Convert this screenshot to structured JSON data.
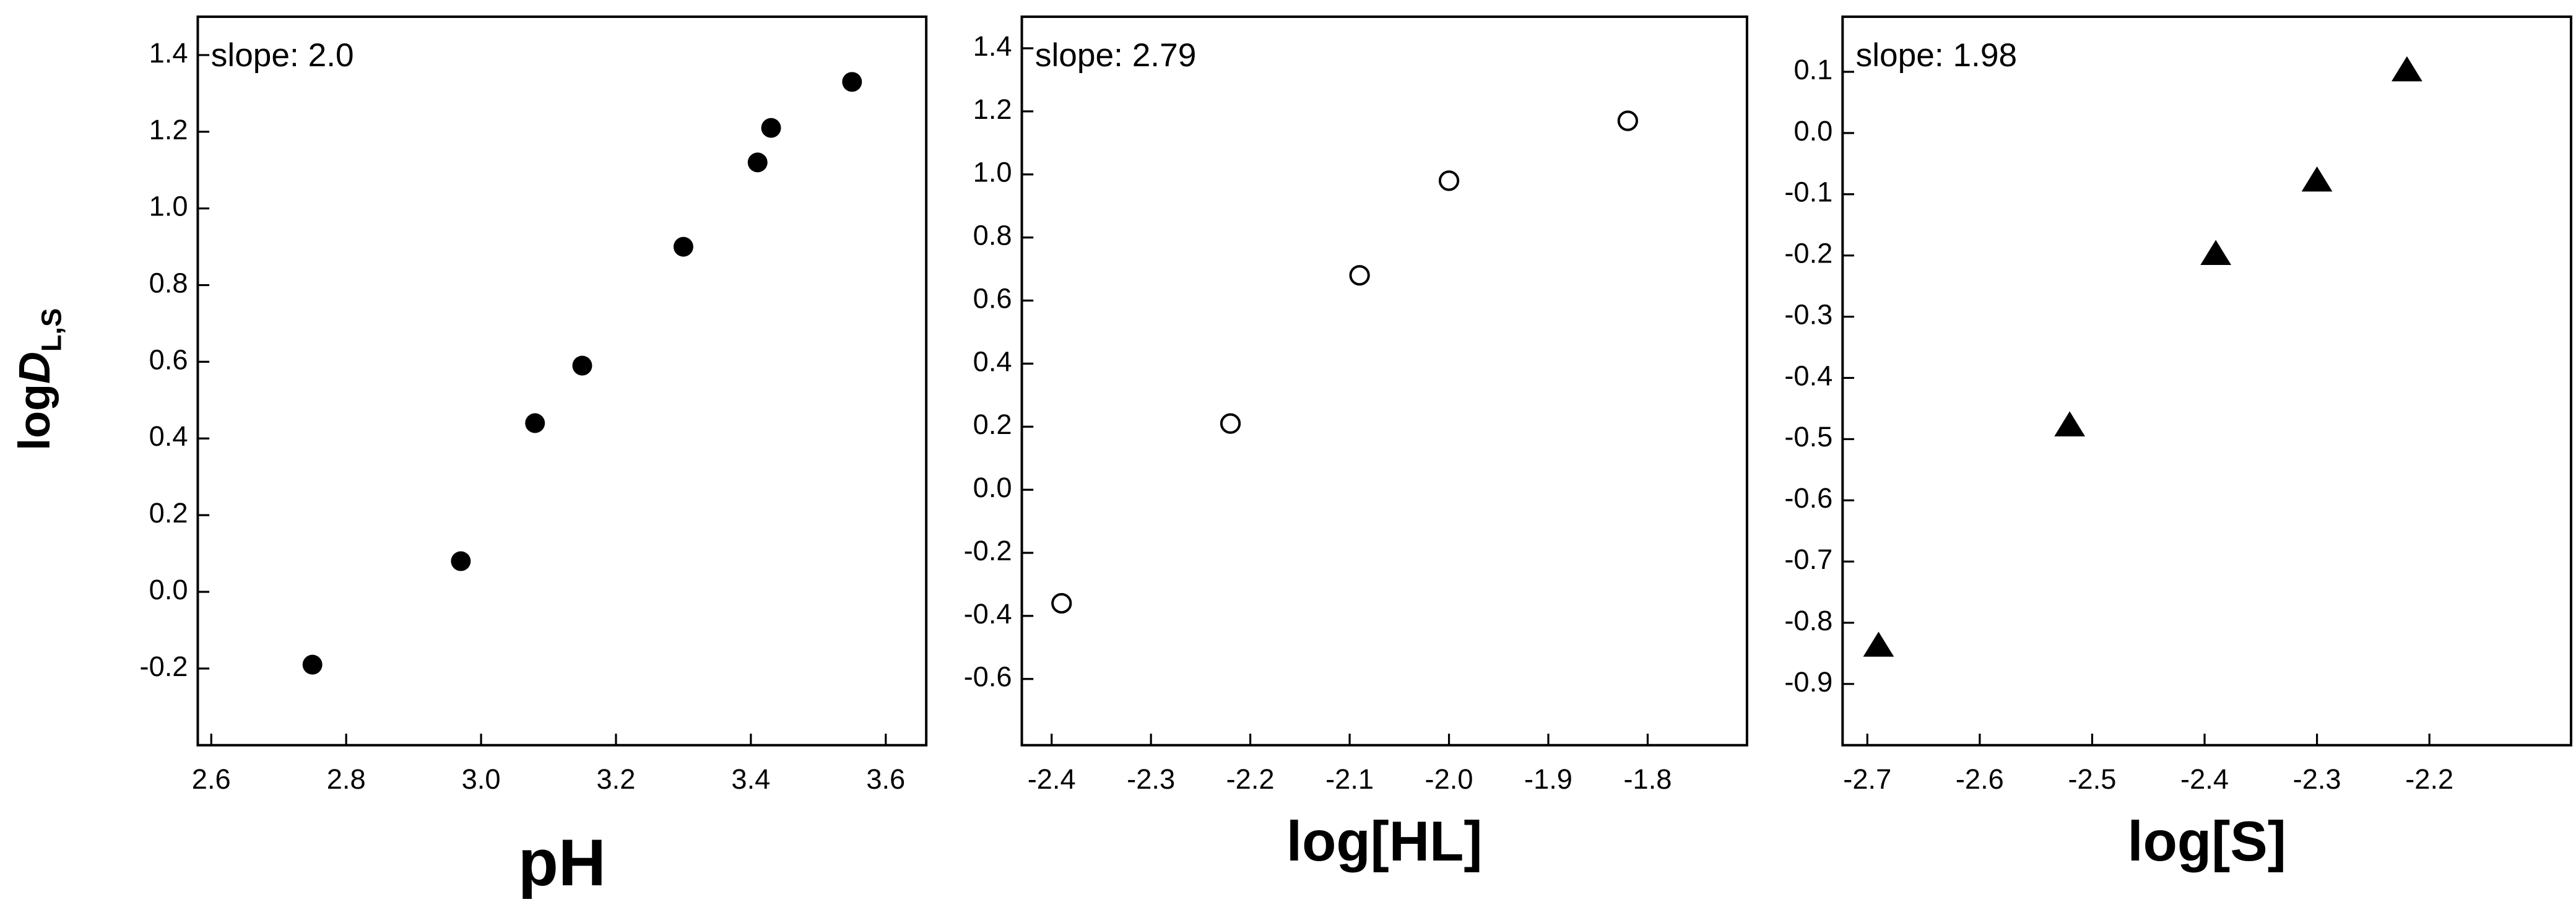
{
  "chart_data": [
    {
      "type": "scatter",
      "marker": "circle-filled",
      "color": "#000000",
      "annotation": "slope: 2.0",
      "xlabel": "pH",
      "ylabel": "log",
      "ylabel_italic": "D",
      "ylabel_sub": "L,S",
      "x": [
        2.75,
        2.97,
        3.08,
        3.15,
        3.3,
        3.41,
        3.43,
        3.55
      ],
      "values": [
        -0.19,
        0.08,
        0.44,
        0.59,
        0.9,
        1.12,
        1.21,
        1.33
      ],
      "xlim": [
        2.58,
        3.66
      ],
      "ylim": [
        -0.4,
        1.5
      ],
      "xticks": [
        2.6,
        2.8,
        {
          "value": 3,
          "label": "3.0"
        },
        3.2,
        3.4,
        3.6
      ],
      "yticks": [
        -0.2,
        {
          "value": 0,
          "label": "0.0"
        },
        0.2,
        0.4,
        0.6,
        0.8,
        {
          "value": 1,
          "label": "1.0"
        },
        1.2,
        1.4
      ]
    },
    {
      "type": "scatter",
      "marker": "circle-open",
      "color": "#000000",
      "annotation": "slope: 2.79",
      "xlabel": "log[HL]",
      "x": [
        -2.39,
        -2.22,
        -2.09,
        -2.0,
        -1.82
      ],
      "values": [
        -0.36,
        0.21,
        0.68,
        0.98,
        1.17
      ],
      "xlim": [
        -2.43,
        -1.7
      ],
      "ylim": [
        -0.81,
        1.5
      ],
      "xticks": [
        -2.4,
        -2.3,
        -2.2,
        -2.1,
        {
          "value": -2,
          "label": "-2.0"
        },
        -1.9,
        -1.8
      ],
      "yticks": [
        -0.6,
        -0.4,
        -0.2,
        {
          "value": 0,
          "label": "0.0"
        },
        0.2,
        0.4,
        0.6,
        0.8,
        {
          "value": 1,
          "label": "1.0"
        },
        1.2,
        1.4
      ]
    },
    {
      "type": "scatter",
      "marker": "triangle",
      "color": "#000000",
      "annotation": "slope: 1.98",
      "xlabel": "log[S]",
      "x": [
        -2.69,
        -2.52,
        -2.39,
        -2.3,
        -2.22
      ],
      "values": [
        -0.84,
        -0.48,
        -0.2,
        -0.08,
        0.1
      ],
      "xlim": [
        -2.722,
        -2.074
      ],
      "ylim": [
        -1.0,
        0.19
      ],
      "xticks": [
        -2.7,
        -2.6,
        -2.5,
        -2.4,
        -2.3,
        -2.2
      ],
      "yticks": [
        -0.9,
        -0.8,
        -0.7,
        -0.6,
        -0.5,
        -0.4,
        -0.3,
        -0.2,
        -0.1,
        {
          "value": 0,
          "label": "0.0"
        },
        0.1
      ]
    }
  ]
}
